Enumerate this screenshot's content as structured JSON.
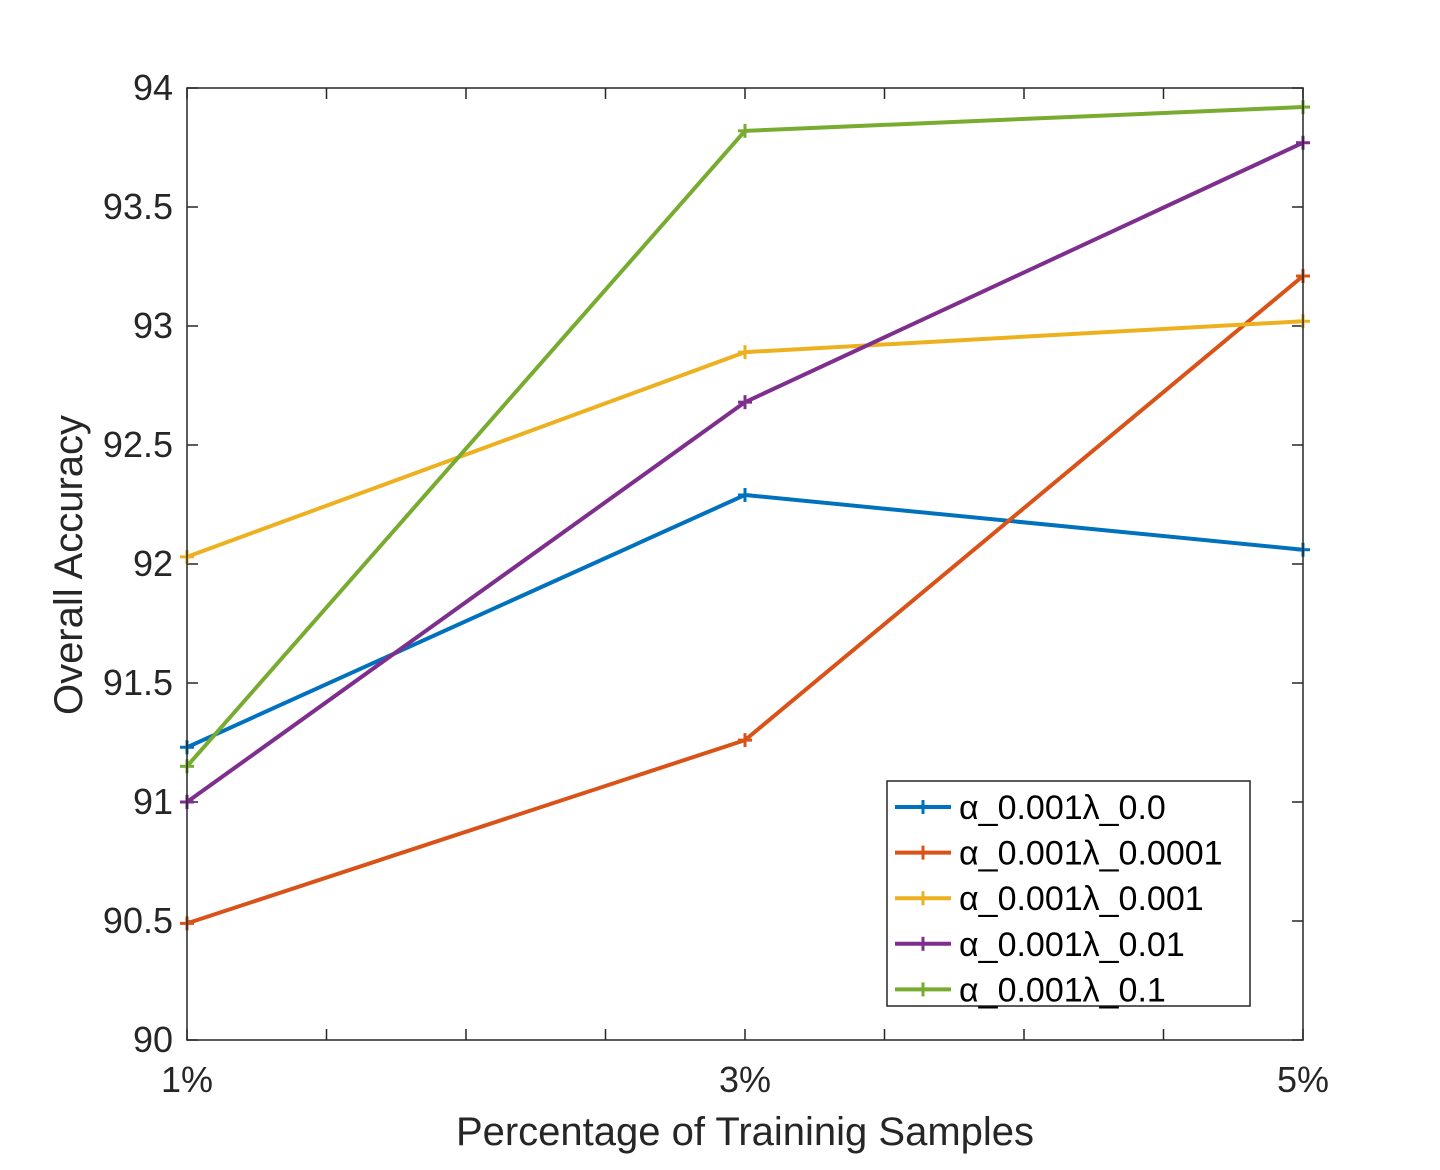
{
  "chart_data": {
    "type": "line",
    "title": "",
    "xlabel": "Percentage of Traininig Samples",
    "ylabel": "Overall Accuracy",
    "categories": [
      "1%",
      "3%",
      "5%"
    ],
    "ylim": [
      90,
      94
    ],
    "yticks": [
      "90",
      "90.5",
      "91",
      "91.5",
      "92",
      "92.5",
      "93",
      "93.5",
      "94"
    ],
    "legend_position": "bottom-right",
    "series": [
      {
        "name": "α_0.001λ_0.0",
        "color": "#0072BD",
        "values": [
          91.23,
          92.29,
          92.06
        ]
      },
      {
        "name": "α_0.001λ_0.0001",
        "color": "#D95319",
        "values": [
          90.49,
          91.26,
          93.21
        ]
      },
      {
        "name": "α_0.001λ_0.001",
        "color": "#EDB120",
        "values": [
          92.03,
          92.89,
          93.02
        ]
      },
      {
        "name": "α_0.001λ_0.01",
        "color": "#7E2F8E",
        "values": [
          91.0,
          92.68,
          93.77
        ]
      },
      {
        "name": "α_0.001λ_0.1",
        "color": "#77AC30",
        "values": [
          91.15,
          93.82,
          93.92
        ]
      }
    ]
  }
}
